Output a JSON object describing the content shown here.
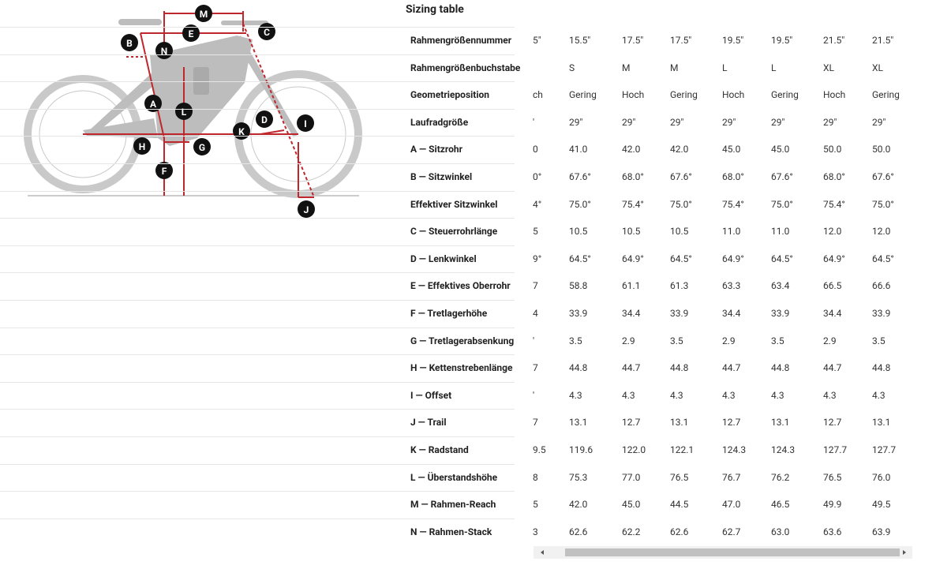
{
  "diagram": {
    "labels": [
      "M",
      "E",
      "C",
      "B",
      "N",
      "A",
      "L",
      "D",
      "I",
      "K",
      "H",
      "G",
      "F",
      "J"
    ]
  },
  "table": {
    "title": "Sizing table",
    "rows": [
      {
        "label": "Rahmengrößennummer",
        "cells": [
          "5\"",
          "15.5\"",
          "17.5\"",
          "17.5\"",
          "19.5\"",
          "19.5\"",
          "21.5\"",
          "21.5\""
        ]
      },
      {
        "label": "Rahmengrößenbuchstabe",
        "cells": [
          null,
          "S",
          "M",
          "M",
          "L",
          "L",
          "XL",
          "XL"
        ]
      },
      {
        "label": "Geometrieposition",
        "cells": [
          "ch",
          "Gering",
          "Hoch",
          "Gering",
          "Hoch",
          "Gering",
          "Hoch",
          "Gering"
        ]
      },
      {
        "label": "Laufradgröße",
        "cells": [
          "'",
          "29\"",
          "29\"",
          "29\"",
          "29\"",
          "29\"",
          "29\"",
          "29\""
        ]
      },
      {
        "label": "A — Sitzrohr",
        "cells": [
          "0",
          "41.0",
          "42.0",
          "42.0",
          "45.0",
          "45.0",
          "50.0",
          "50.0"
        ]
      },
      {
        "label": "B — Sitzwinkel",
        "cells": [
          "0°",
          "67.6°",
          "68.0°",
          "67.6°",
          "68.0°",
          "67.6°",
          "68.0°",
          "67.6°"
        ]
      },
      {
        "label": "Effektiver Sitzwinkel",
        "cells": [
          "4°",
          "75.0°",
          "75.4°",
          "75.0°",
          "75.4°",
          "75.0°",
          "75.4°",
          "75.0°"
        ]
      },
      {
        "label": "C — Steuerrohrlänge",
        "cells": [
          "5",
          "10.5",
          "10.5",
          "10.5",
          "11.0",
          "11.0",
          "12.0",
          "12.0"
        ]
      },
      {
        "label": "D — Lenkwinkel",
        "cells": [
          "9°",
          "64.5°",
          "64.9°",
          "64.5°",
          "64.9°",
          "64.5°",
          "64.9°",
          "64.5°"
        ]
      },
      {
        "label": "E — Effektives Oberrohr",
        "cells": [
          "7",
          "58.8",
          "61.1",
          "61.3",
          "63.3",
          "63.4",
          "66.5",
          "66.6"
        ]
      },
      {
        "label": "F — Tretlagerhöhe",
        "cells": [
          "4",
          "33.9",
          "34.4",
          "33.9",
          "34.4",
          "33.9",
          "34.4",
          "33.9"
        ]
      },
      {
        "label": "G — Tretlagerabsenkung",
        "cells": [
          "'",
          "3.5",
          "2.9",
          "3.5",
          "2.9",
          "3.5",
          "2.9",
          "3.5"
        ]
      },
      {
        "label": "H — Kettenstrebenlänge",
        "cells": [
          "7",
          "44.8",
          "44.7",
          "44.8",
          "44.7",
          "44.8",
          "44.7",
          "44.8"
        ]
      },
      {
        "label": "I — Offset",
        "cells": [
          "'",
          "4.3",
          "4.3",
          "4.3",
          "4.3",
          "4.3",
          "4.3",
          "4.3"
        ]
      },
      {
        "label": "J — Trail",
        "cells": [
          "7",
          "13.1",
          "12.7",
          "13.1",
          "12.7",
          "13.1",
          "12.7",
          "13.1"
        ]
      },
      {
        "label": "K — Radstand",
        "cells": [
          "9.5",
          "119.6",
          "122.0",
          "122.1",
          "124.3",
          "124.3",
          "127.7",
          "127.7"
        ]
      },
      {
        "label": "L — Überstandshöhe",
        "cells": [
          "8",
          "75.3",
          "77.0",
          "76.5",
          "76.7",
          "76.2",
          "76.5",
          "76.0"
        ]
      },
      {
        "label": "M — Rahmen-Reach",
        "cells": [
          "5",
          "42.0",
          "45.0",
          "44.5",
          "47.0",
          "46.5",
          "49.9",
          "49.5"
        ]
      },
      {
        "label": "N — Rahmen-Stack",
        "cells": [
          "3",
          "62.6",
          "62.2",
          "62.6",
          "62.7",
          "63.0",
          "63.6",
          "63.9"
        ]
      }
    ]
  }
}
